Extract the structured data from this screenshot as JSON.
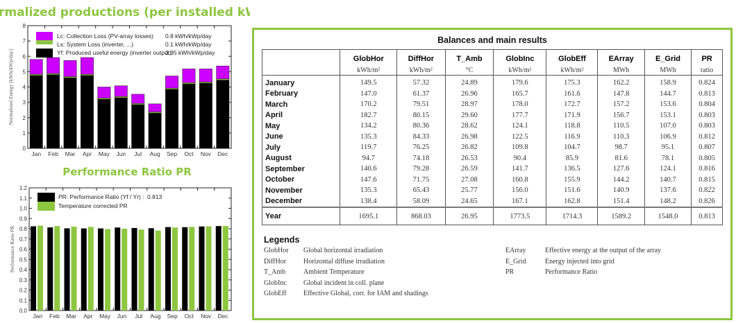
{
  "titles": {
    "normalized": "Normalized productions (per installed kWp)",
    "pr": "Performance Ratio PR"
  },
  "colors": {
    "accent": "#8dc63f",
    "collection_loss": "#cc00ff",
    "system_loss": "#8dc63f",
    "useful_energy": "#000000",
    "pr": "#000000",
    "pr_temp": "#8dc63f"
  },
  "chart_data": [
    {
      "type": "bar",
      "stacked": true,
      "ylabel": "Normalized Energy [kWh/kWp/day]",
      "ylim": [
        0,
        8
      ],
      "yticks": [
        "0",
        "1",
        "2",
        "3",
        "4",
        "5",
        "6",
        "7",
        "8"
      ],
      "categories": [
        "Jan",
        "Feb",
        "Mar",
        "Apr",
        "May",
        "Jun",
        "Jul",
        "Aug",
        "Sep",
        "Oct",
        "Nov",
        "Dec"
      ],
      "legend_position": "top-left",
      "series": [
        {
          "name": "Yf: Produced useful energy  (inverter output)",
          "value_label": "3.95 kWh/kWp/day",
          "values": [
            4.75,
            4.8,
            4.6,
            4.75,
            3.2,
            3.3,
            2.85,
            2.3,
            3.85,
            4.2,
            4.25,
            4.45
          ]
        },
        {
          "name": "Ls: System Loss  (inverter, ...)",
          "value_label": "0.1 kWh/kWp/day",
          "values": [
            0.08,
            0.08,
            0.08,
            0.08,
            0.08,
            0.08,
            0.08,
            0.08,
            0.08,
            0.08,
            0.08,
            0.08
          ]
        },
        {
          "name": "Lc: Collection Loss (PV-array losses)",
          "value_label": "0.8 kWh/kWp/day",
          "values": [
            0.97,
            1.04,
            1.05,
            1.09,
            0.72,
            0.7,
            0.6,
            0.52,
            0.79,
            0.9,
            0.85,
            0.84
          ]
        }
      ]
    },
    {
      "type": "bar",
      "ylabel": "Performance Ratio PR",
      "ylim": [
        0,
        1.2
      ],
      "yticks": [
        "0.0",
        "0.1",
        "0.2",
        "0.3",
        "0.4",
        "0.5",
        "0.6",
        "0.7",
        "0.8",
        "0.9",
        "1.0",
        "1.1",
        "1.2"
      ],
      "categories": [
        "Jan",
        "Feb",
        "Mar",
        "Apr",
        "May",
        "Jun",
        "Jul",
        "Aug",
        "Sep",
        "Oct",
        "Nov",
        "Dec"
      ],
      "legend_position": "top-left",
      "series": [
        {
          "name": "PR: Performance Ratio (Yf / Yr) :",
          "value_label": "0.813",
          "values": [
            0.824,
            0.813,
            0.804,
            0.803,
            0.803,
            0.812,
            0.807,
            0.805,
            0.816,
            0.815,
            0.822,
            0.826
          ]
        },
        {
          "name": "Temperature corrected PR",
          "values": [
            0.83,
            0.826,
            0.82,
            0.818,
            0.797,
            0.8,
            0.792,
            0.782,
            0.812,
            0.818,
            0.824,
            0.828
          ]
        }
      ]
    }
  ],
  "table": {
    "title": "Balances and main results",
    "columns": [
      {
        "name": "GlobHor",
        "unit": "kWh/m²"
      },
      {
        "name": "DiffHor",
        "unit": "kWh/m²"
      },
      {
        "name": "T_Amb",
        "unit": "°C"
      },
      {
        "name": "GlobInc",
        "unit": "kWh/m²"
      },
      {
        "name": "GlobEff",
        "unit": "kWh/m²"
      },
      {
        "name": "EArray",
        "unit": "MWh"
      },
      {
        "name": "E_Grid",
        "unit": "MWh"
      },
      {
        "name": "PR",
        "unit": "ratio"
      }
    ],
    "rows": [
      {
        "label": "January",
        "values": [
          "149.5",
          "57.32",
          "24.89",
          "179.6",
          "175.3",
          "162.2",
          "158.9",
          "0.824"
        ]
      },
      {
        "label": "February",
        "values": [
          "147.0",
          "61.37",
          "26.96",
          "165.7",
          "161.6",
          "147.8",
          "144.7",
          "0.813"
        ]
      },
      {
        "label": "March",
        "values": [
          "170.2",
          "79.51",
          "28.97",
          "178.0",
          "172.7",
          "157.2",
          "153.6",
          "0.804"
        ]
      },
      {
        "label": "April",
        "values": [
          "182.7",
          "80.15",
          "29.60",
          "177.7",
          "171.9",
          "156.7",
          "153.1",
          "0.803"
        ]
      },
      {
        "label": "May",
        "values": [
          "134.2",
          "80.36",
          "28.62",
          "124.1",
          "118.8",
          "110.5",
          "107.0",
          "0.803"
        ]
      },
      {
        "label": "June",
        "values": [
          "135.3",
          "84.33",
          "26.98",
          "122.5",
          "116.9",
          "110.3",
          "106.9",
          "0.812"
        ]
      },
      {
        "label": "July",
        "values": [
          "119.7",
          "76.25",
          "26.82",
          "109.8",
          "104.7",
          "98.7",
          "95.1",
          "0.807"
        ]
      },
      {
        "label": "August",
        "values": [
          "94.7",
          "74.18",
          "26.53",
          "90.4",
          "85.9",
          "81.6",
          "78.1",
          "0.805"
        ]
      },
      {
        "label": "September",
        "values": [
          "140.6",
          "79.28",
          "26.59",
          "141.7",
          "136.5",
          "127.6",
          "124.1",
          "0.816"
        ]
      },
      {
        "label": "October",
        "values": [
          "147.6",
          "71.75",
          "27.08",
          "160.8",
          "155.9",
          "144.2",
          "140.7",
          "0.815"
        ]
      },
      {
        "label": "November",
        "values": [
          "135.3",
          "65.43",
          "25.77",
          "156.0",
          "151.6",
          "140.9",
          "137.6",
          "0.822"
        ]
      },
      {
        "label": "December",
        "values": [
          "138.4",
          "58.09",
          "24.65",
          "167.1",
          "162.8",
          "151.4",
          "148.2",
          "0.826"
        ]
      }
    ],
    "year": {
      "label": "Year",
      "values": [
        "1695.1",
        "868.03",
        "26.95",
        "1773.5",
        "1714.3",
        "1589.2",
        "1548.0",
        "0.813"
      ]
    }
  },
  "legends": {
    "title": "Legends",
    "items": [
      {
        "key": "GlobHor",
        "desc": "Global horizontal irradiation"
      },
      {
        "key": "DiffHor",
        "desc": "Horizontal diffuse irradiation"
      },
      {
        "key": "T_Amb",
        "desc": "Ambient Temperature"
      },
      {
        "key": "GlobInc",
        "desc": "Global incident in coll. plane"
      },
      {
        "key": "GlobEff",
        "desc": "Effective Global, corr. for IAM and shadings"
      },
      {
        "key": "EArray",
        "desc": "Effective energy at the output of the array"
      },
      {
        "key": "E_Grid",
        "desc": "Energy injected into grid"
      },
      {
        "key": "PR",
        "desc": "Performance Ratio"
      }
    ]
  }
}
